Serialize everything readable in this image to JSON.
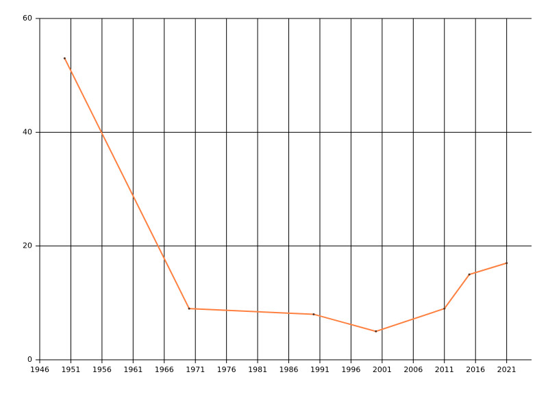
{
  "chart_data": {
    "type": "line",
    "x": [
      1950,
      1970,
      1990,
      2000,
      2011,
      2015,
      2021
    ],
    "values": [
      53,
      9,
      8,
      5,
      9,
      15,
      17
    ],
    "color": "#ff8040",
    "xlim": [
      1946,
      2025
    ],
    "xticks": [
      1946,
      1951,
      1956,
      1961,
      1966,
      1971,
      1976,
      1981,
      1986,
      1991,
      1996,
      2001,
      2006,
      2011,
      2016,
      2021
    ],
    "ylim": [
      0,
      60
    ],
    "yticks": [
      0,
      20,
      40,
      60
    ],
    "grid": true
  }
}
